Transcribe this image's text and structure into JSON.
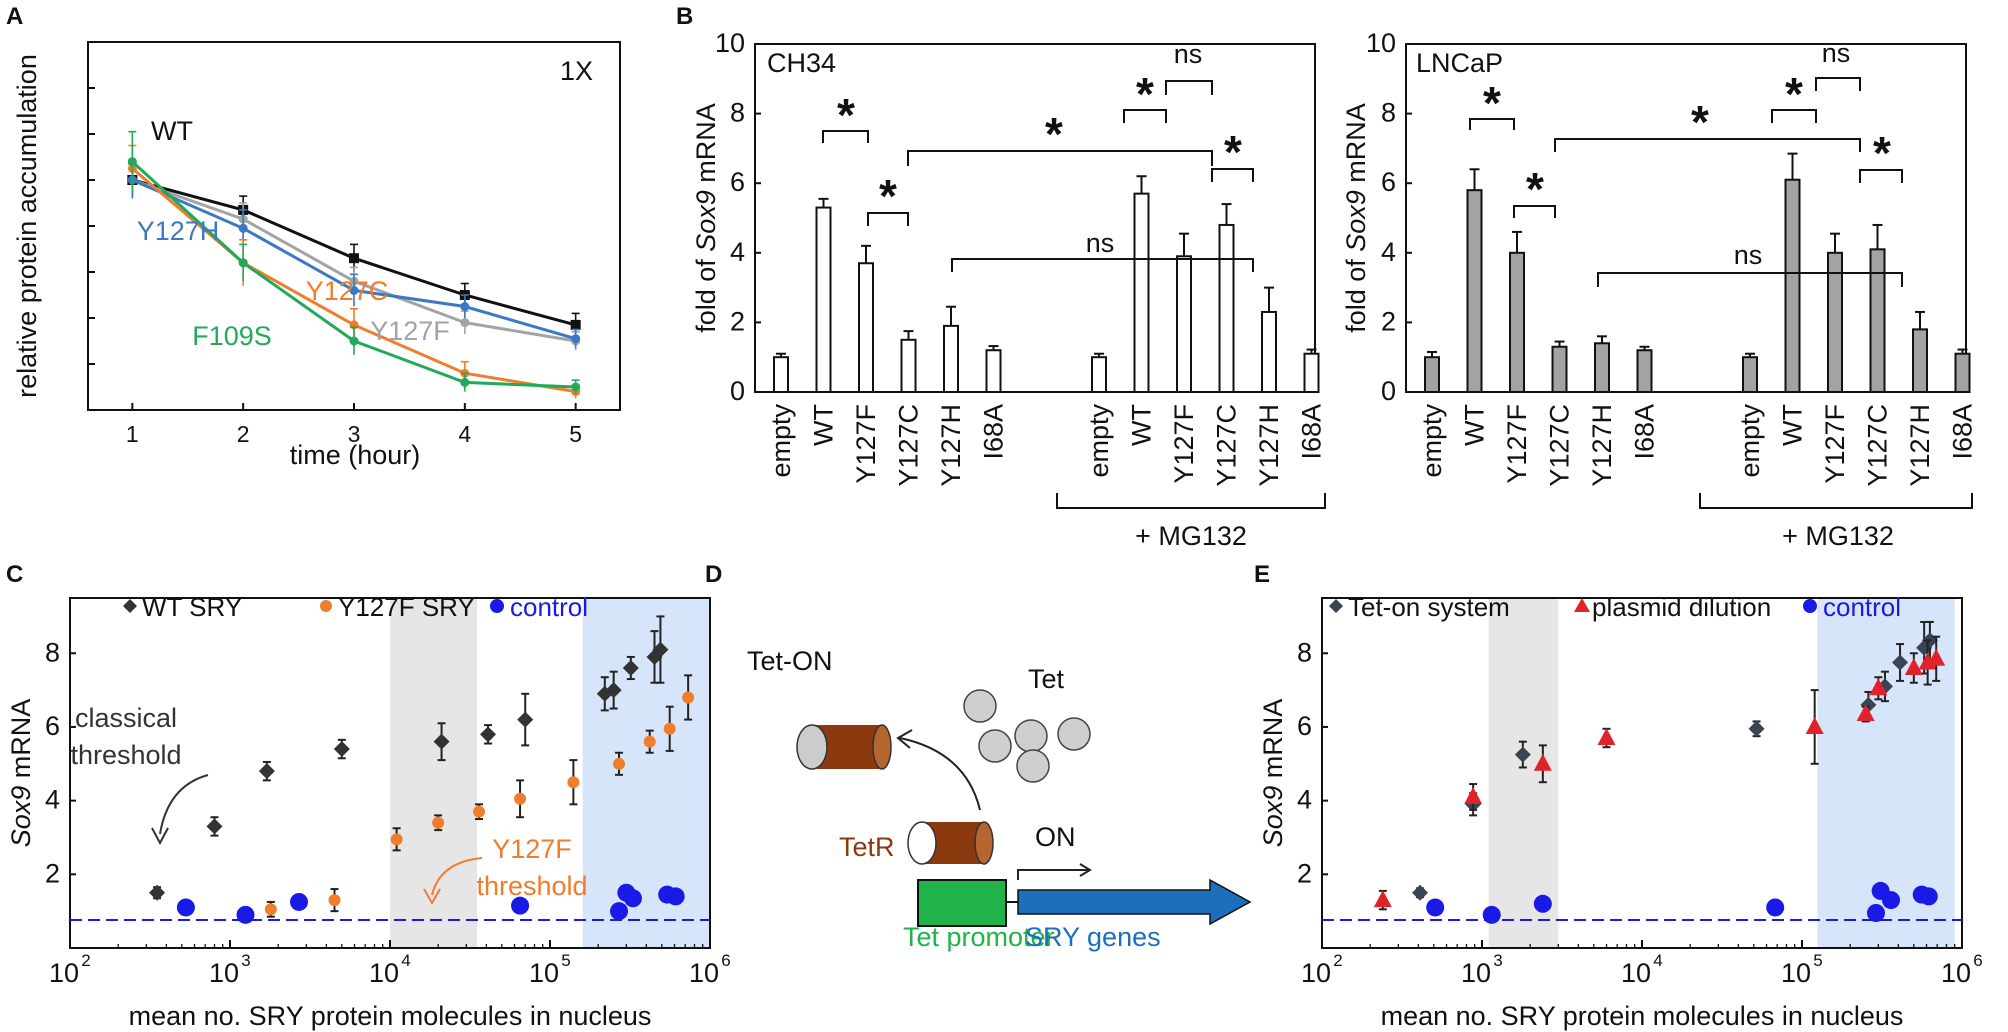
{
  "panels": {
    "a": "A",
    "b": "B",
    "c": "C",
    "d": "D",
    "e": "E"
  },
  "colors": {
    "black": "#111111",
    "gray": "#a3a3a3",
    "blue": "#3c78c3",
    "orange": "#ef7d2c",
    "green": "#23a95a",
    "red": "#e0232b",
    "navy": "#3a4455",
    "control": "#1a1ae6",
    "shade_gray": "#e6e6e6",
    "shade_blue": "#d6e5fa",
    "tetr": "#8b3a0f",
    "promoter": "#1fb34a",
    "gene": "#1b6fbd"
  },
  "chart_data": [
    {
      "id": "A",
      "type": "line",
      "inset_label": "1X",
      "xlabel": "time (hour)",
      "ylabel": "relative protein accumulation",
      "x": [
        1,
        2,
        3,
        4,
        5
      ],
      "xlim": [
        0.6,
        5.4
      ],
      "ylim": [
        0,
        1.6
      ],
      "series": [
        {
          "name": "WT",
          "color": "#111111",
          "values": [
            1.0,
            0.87,
            0.66,
            0.5,
            0.37
          ],
          "err": [
            0.07,
            0.06,
            0.06,
            0.05,
            0.05
          ]
        },
        {
          "name": "Y127F",
          "color": "#a3a3a3",
          "values": [
            1.0,
            0.83,
            0.56,
            0.38,
            0.3
          ],
          "err": [
            0.08,
            0.07,
            0.06,
            0.05,
            0.04
          ]
        },
        {
          "name": "Y127H",
          "color": "#3c78c3",
          "values": [
            1.0,
            0.79,
            0.52,
            0.45,
            0.31
          ],
          "err": [
            0.08,
            0.08,
            0.07,
            0.05,
            0.04
          ]
        },
        {
          "name": "Y127C",
          "color": "#ef7d2c",
          "values": [
            1.05,
            0.64,
            0.37,
            0.16,
            0.08
          ],
          "err": [
            0.1,
            0.1,
            0.07,
            0.05,
            0.03
          ]
        },
        {
          "name": "F109S",
          "color": "#23a95a",
          "values": [
            1.08,
            0.64,
            0.3,
            0.12,
            0.1
          ],
          "err": [
            0.13,
            0.08,
            0.06,
            0.04,
            0.03
          ]
        }
      ]
    },
    {
      "id": "B-left",
      "type": "bar",
      "cell_line": "CH34",
      "ylabel": "fold of Sox9 mRNA",
      "ylim": [
        0,
        10
      ],
      "yticks": [
        0,
        2,
        4,
        6,
        8,
        10
      ],
      "categories": [
        "empty",
        "WT",
        "Y127F",
        "Y127C",
        "Y127H",
        "I68A",
        "empty",
        "WT",
        "Y127F",
        "Y127C",
        "Y127H",
        "I68A"
      ],
      "values": [
        1.0,
        5.3,
        3.7,
        1.5,
        1.9,
        1.2,
        1.0,
        5.7,
        3.9,
        4.8,
        2.3,
        1.1
      ],
      "err": [
        0.1,
        0.25,
        0.5,
        0.25,
        0.55,
        0.12,
        0.1,
        0.5,
        0.65,
        0.6,
        0.7,
        0.12
      ],
      "bar_color": "#ffffff",
      "group_label": "+ MG132",
      "stars": [
        "*",
        "*",
        "*",
        "*",
        "*"
      ],
      "ns": [
        "ns",
        "ns"
      ]
    },
    {
      "id": "B-right",
      "type": "bar",
      "cell_line": "LNCaP",
      "ylabel": "fold of Sox9 mRNA",
      "ylim": [
        0,
        10
      ],
      "yticks": [
        0,
        2,
        4,
        6,
        8,
        10
      ],
      "categories": [
        "empty",
        "WT",
        "Y127F",
        "Y127C",
        "Y127H",
        "I68A",
        "empty",
        "WT",
        "Y127F",
        "Y127C",
        "Y127H",
        "I68A"
      ],
      "values": [
        1.0,
        5.8,
        4.0,
        1.3,
        1.4,
        1.2,
        1.0,
        6.1,
        4.0,
        4.1,
        1.8,
        1.1
      ],
      "err": [
        0.15,
        0.6,
        0.6,
        0.15,
        0.2,
        0.1,
        0.1,
        0.75,
        0.55,
        0.7,
        0.5,
        0.12
      ],
      "bar_color": "#a3a3a3",
      "group_label": "+ MG132",
      "stars": [
        "*",
        "*",
        "*",
        "*",
        "*"
      ],
      "ns": [
        "ns",
        "ns"
      ]
    },
    {
      "id": "C",
      "type": "scatter",
      "xscale": "log",
      "xlim_exp": [
        2,
        6
      ],
      "xticks": [
        "10",
        "10",
        "10",
        "10",
        "10"
      ],
      "xtick_exp": [
        "2",
        "3",
        "4",
        "5",
        "6"
      ],
      "xlabel": "mean no. SRY protein molecules in nucleus",
      "ylabel": "Sox9 mRNA",
      "ylim": [
        0,
        9.5
      ],
      "yticks": [
        2,
        4,
        6,
        8
      ],
      "baseline": 1.0,
      "shaded_ranges": [
        [
          10000,
          35000
        ],
        [
          160000,
          1000000
        ]
      ],
      "annotations": [
        {
          "text": "classical",
          "color": "#333333"
        },
        {
          "text": "threshold",
          "color": "#333333"
        },
        {
          "text": "Y127F",
          "color": "#ef7d2c"
        },
        {
          "text": "threshold",
          "color": "#ef7d2c"
        }
      ],
      "series": [
        {
          "name": "WT SRY",
          "marker": "diamond",
          "color": "#333333",
          "x": [
            350,
            800,
            1700,
            5000,
            21000,
            41000,
            70000,
            220000,
            250000,
            320000,
            450000,
            490000
          ],
          "y": [
            1.5,
            3.3,
            4.8,
            5.4,
            5.6,
            5.8,
            6.2,
            6.9,
            7.0,
            7.6,
            7.9,
            8.1
          ],
          "err": [
            0.15,
            0.25,
            0.25,
            0.25,
            0.5,
            0.25,
            0.7,
            0.45,
            0.5,
            0.3,
            0.7,
            0.9
          ]
        },
        {
          "name": "Y127F SRY",
          "marker": "circle",
          "color": "#ef7d2c",
          "x": [
            1800,
            4500,
            11000,
            20000,
            36000,
            65000,
            140000,
            270000,
            420000,
            560000,
            730000
          ],
          "y": [
            1.05,
            1.3,
            2.95,
            3.4,
            3.7,
            4.05,
            4.5,
            5.0,
            5.6,
            5.95,
            6.8
          ],
          "err": [
            0.2,
            0.3,
            0.3,
            0.2,
            0.2,
            0.5,
            0.6,
            0.3,
            0.3,
            0.6,
            0.6
          ]
        },
        {
          "name": "control",
          "marker": "circle",
          "color": "#1a1ae6",
          "x": [
            530,
            1250,
            2700,
            65000,
            270000,
            300000,
            330000,
            540000,
            610000
          ],
          "y": [
            1.1,
            0.9,
            1.25,
            1.15,
            1.0,
            1.5,
            1.35,
            1.45,
            1.4
          ],
          "err": [
            0,
            0.15,
            0.15,
            0,
            0,
            0,
            0,
            0,
            0
          ]
        }
      ]
    },
    {
      "id": "E",
      "type": "scatter",
      "xscale": "log",
      "xlim_exp": [
        2,
        6
      ],
      "xticks": [
        "10",
        "10",
        "10",
        "10",
        "10"
      ],
      "xtick_exp": [
        "2",
        "3",
        "4",
        "5",
        "6"
      ],
      "xlabel": "mean no. SRY protein molecules in nucleus",
      "ylabel": "Sox9 mRNA",
      "ylim": [
        0,
        9.5
      ],
      "yticks": [
        2,
        4,
        6,
        8
      ],
      "baseline": 1.0,
      "shaded_ranges": [
        [
          1100,
          3000
        ],
        [
          125000,
          900000
        ]
      ],
      "series": [
        {
          "name": "Tet-on system",
          "marker": "diamond",
          "color": "#3a4455",
          "x": [
            410,
            880,
            1800,
            52000,
            260000,
            330000,
            410000,
            580000,
            630000
          ],
          "y": [
            1.5,
            3.9,
            5.25,
            5.95,
            6.6,
            7.1,
            7.75,
            8.15,
            8.35
          ],
          "err": [
            0.12,
            0.3,
            0.35,
            0.2,
            0.35,
            0.4,
            0.5,
            0.7,
            0.5
          ]
        },
        {
          "name": "plasmid dilution",
          "marker": "triangle",
          "color": "#e0232b",
          "x": [
            240,
            880,
            2400,
            6000,
            120000,
            250000,
            300000,
            500000,
            610000,
            690000
          ],
          "y": [
            1.3,
            4.1,
            5.0,
            5.7,
            6.0,
            6.35,
            7.05,
            7.6,
            7.75,
            7.85
          ],
          "err": [
            0.25,
            0.35,
            0.5,
            0.25,
            1.0,
            0.2,
            0.3,
            0.4,
            0.6,
            0.6
          ]
        },
        {
          "name": "control",
          "marker": "circle",
          "color": "#1a1ae6",
          "x": [
            510,
            1150,
            2400,
            68000,
            290000,
            310000,
            360000,
            560000,
            620000
          ],
          "y": [
            1.1,
            0.9,
            1.2,
            1.1,
            0.95,
            1.55,
            1.3,
            1.45,
            1.4
          ],
          "err": [
            0,
            0,
            0,
            0,
            0,
            0,
            0,
            0,
            0
          ]
        }
      ]
    }
  ],
  "diagram_d": {
    "tet_on": "Tet-ON",
    "tet": "Tet",
    "tetr": "TetR",
    "on": "ON",
    "promoter": "Tet promoter",
    "genes": "SRY genes"
  }
}
